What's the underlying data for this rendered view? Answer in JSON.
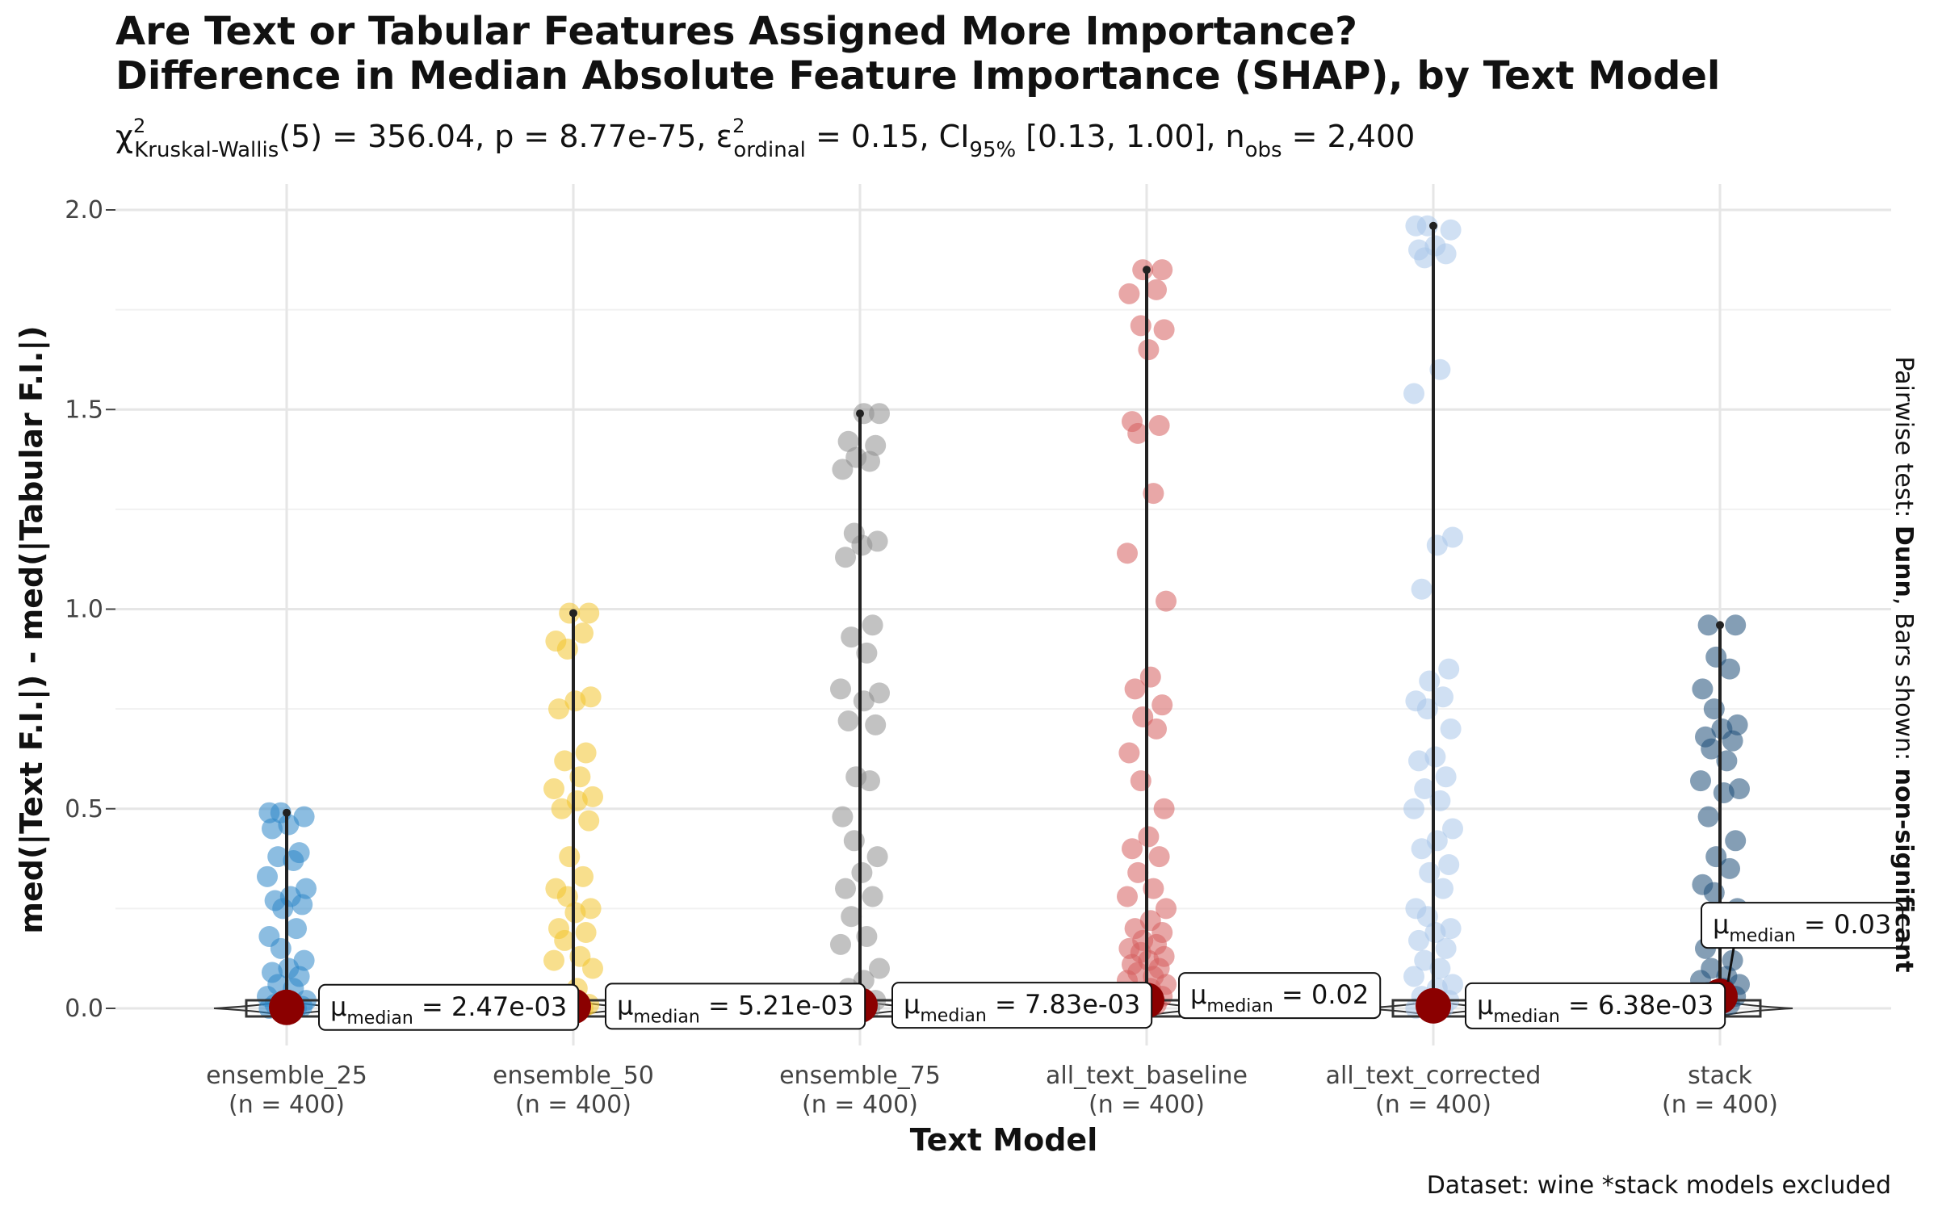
{
  "chart_data": {
    "type": "scatter",
    "title": "Are Text or Tabular Features Assigned More Importance?",
    "subtitle": "Difference in Median Absolute Feature Importance (SHAP), by Text Model",
    "stats": {
      "chi": "χ",
      "chi_sup": "2",
      "chi_sub": "Kruskal-Wallis",
      "df_text": "(5) = 356.04, p = 8.77e-75, ",
      "eps": "ε",
      "eps_sup": "2",
      "eps_sub": "ordinal",
      "eps_val": " = 0.15, CI",
      "ci_sub": "95%",
      "ci_val": " [0.13, 1.00], n",
      "n_sub": "obs",
      "n_val": " = 2,400"
    },
    "xlabel": "Text Model",
    "ylabel": "med(|Text F.I.|) - med(|Tabular F.I.|)",
    "ylim": [
      -0.03,
      2.05
    ],
    "yticks": [
      "0.0",
      "0.5",
      "1.0",
      "1.5",
      "2.0"
    ],
    "grid": true,
    "caption": "Dataset:  wine *stack models excluded",
    "side_label": {
      "prefix": "Pairwise test: ",
      "test": "Dunn",
      "middle": ", Bars shown: ",
      "bars": "non-significant"
    },
    "median_label_prefix": "μ",
    "median_label_sub": "median",
    "median_color": "#8B0000",
    "categories": [
      {
        "name": "ensemble_25",
        "n_label": "(n = 400)",
        "color": "#2E86C9",
        "median_label": " = 2.47e-03",
        "median": 0.00247,
        "whisker_max": 0.49,
        "points": [
          0.0,
          0.0,
          0.0,
          0.005,
          0.01,
          0.015,
          0.02,
          0.03,
          0.05,
          0.06,
          0.08,
          0.09,
          0.1,
          0.12,
          0.15,
          0.18,
          0.2,
          0.25,
          0.26,
          0.27,
          0.28,
          0.3,
          0.33,
          0.37,
          0.38,
          0.39,
          0.45,
          0.46,
          0.48,
          0.49,
          0.49
        ]
      },
      {
        "name": "ensemble_50",
        "n_label": "(n = 400)",
        "color": "#F2C42F",
        "median_label": " = 5.21e-03",
        "median": 0.00521,
        "whisker_max": 0.99,
        "points": [
          0.0,
          0.0,
          0.005,
          0.01,
          0.03,
          0.05,
          0.1,
          0.12,
          0.13,
          0.17,
          0.19,
          0.2,
          0.24,
          0.25,
          0.28,
          0.3,
          0.33,
          0.38,
          0.47,
          0.5,
          0.52,
          0.53,
          0.55,
          0.58,
          0.62,
          0.64,
          0.75,
          0.77,
          0.78,
          0.9,
          0.92,
          0.94,
          0.99,
          0.99
        ]
      },
      {
        "name": "ensemble_75",
        "n_label": "(n = 400)",
        "color": "#8F8F8F",
        "median_label": " = 7.83e-03",
        "median": 0.00783,
        "whisker_max": 1.49,
        "points": [
          0.0,
          0.0,
          0.005,
          0.02,
          0.05,
          0.07,
          0.1,
          0.16,
          0.18,
          0.23,
          0.28,
          0.3,
          0.34,
          0.38,
          0.42,
          0.48,
          0.57,
          0.58,
          0.71,
          0.72,
          0.77,
          0.79,
          0.8,
          0.89,
          0.93,
          0.96,
          1.13,
          1.16,
          1.17,
          1.19,
          1.35,
          1.37,
          1.38,
          1.41,
          1.42,
          1.49,
          1.49
        ]
      },
      {
        "name": "all_text_baseline",
        "n_label": "(n = 400)",
        "color": "#D65F5F",
        "median_label": " = 0.02",
        "median": 0.02,
        "whisker_max": 1.85,
        "points": [
          0.0,
          0.01,
          0.02,
          0.03,
          0.04,
          0.05,
          0.06,
          0.07,
          0.08,
          0.09,
          0.1,
          0.11,
          0.12,
          0.13,
          0.14,
          0.15,
          0.16,
          0.17,
          0.19,
          0.2,
          0.22,
          0.25,
          0.28,
          0.3,
          0.34,
          0.38,
          0.4,
          0.43,
          0.5,
          0.57,
          0.64,
          0.7,
          0.73,
          0.76,
          0.8,
          0.83,
          1.02,
          1.14,
          1.29,
          1.44,
          1.46,
          1.47,
          1.65,
          1.7,
          1.71,
          1.79,
          1.8,
          1.85,
          1.85
        ]
      },
      {
        "name": "all_text_corrected",
        "n_label": "(n = 400)",
        "color": "#A9C6EA",
        "median_label": " = 6.38e-03",
        "median": 0.00638,
        "whisker_max": 1.96,
        "points": [
          0.0,
          0.0,
          0.01,
          0.02,
          0.03,
          0.05,
          0.06,
          0.08,
          0.1,
          0.12,
          0.15,
          0.17,
          0.19,
          0.2,
          0.23,
          0.25,
          0.3,
          0.34,
          0.36,
          0.4,
          0.42,
          0.45,
          0.5,
          0.52,
          0.55,
          0.58,
          0.62,
          0.63,
          0.7,
          0.75,
          0.77,
          0.78,
          0.82,
          0.85,
          1.05,
          1.16,
          1.18,
          1.54,
          1.6,
          1.88,
          1.89,
          1.9,
          1.91,
          1.95,
          1.96,
          1.96
        ]
      },
      {
        "name": "stack",
        "n_label": "(n = 400)",
        "color": "#1F4E79",
        "median_label": " = 0.03",
        "median": 0.03,
        "whisker_max": 0.96,
        "points": [
          0.0,
          0.01,
          0.02,
          0.03,
          0.04,
          0.05,
          0.06,
          0.07,
          0.08,
          0.1,
          0.12,
          0.15,
          0.2,
          0.25,
          0.29,
          0.31,
          0.35,
          0.38,
          0.42,
          0.48,
          0.54,
          0.55,
          0.57,
          0.62,
          0.65,
          0.67,
          0.68,
          0.7,
          0.71,
          0.75,
          0.8,
          0.85,
          0.88,
          0.96,
          0.96
        ]
      }
    ]
  }
}
